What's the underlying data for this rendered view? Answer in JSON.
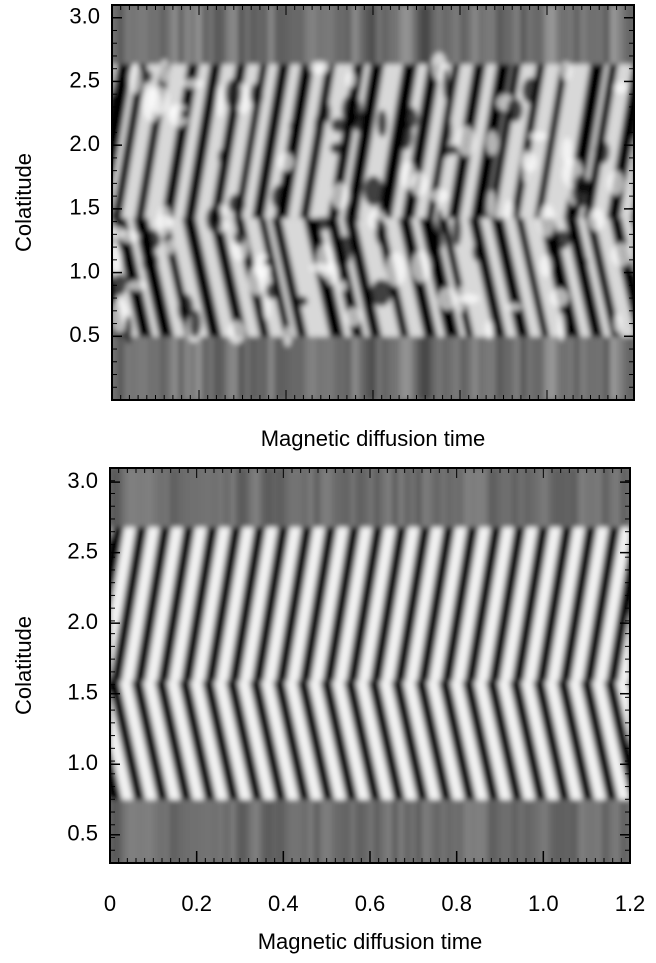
{
  "chart_data": [
    {
      "type": "heatmap",
      "ylabel": "Colatitude",
      "xlabel": "Magnetic diffusion time",
      "ylim": [
        0,
        3.1
      ],
      "yticks": [
        0.5,
        {
          "value": 1,
          "label": "1.0"
        },
        1.5,
        {
          "value": 2,
          "label": "2.0"
        },
        2.5,
        {
          "value": 3,
          "label": "3.0"
        }
      ]
    },
    {
      "type": "heatmap",
      "ylabel": "Colatitude",
      "xlabel": "Magnetic diffusion time",
      "xlim": [
        0,
        1.2
      ],
      "xticks": [
        0,
        0.2,
        0.4,
        0.6,
        0.8,
        {
          "value": 1,
          "label": "1.0"
        },
        1.2
      ],
      "ylim": [
        0.3,
        3.1
      ],
      "yticks": [
        0.5,
        {
          "value": 1,
          "label": "1.0"
        },
        1.5,
        {
          "value": 2,
          "label": "2.0"
        },
        2.5,
        {
          "value": 3,
          "label": "3.0"
        }
      ]
    }
  ]
}
